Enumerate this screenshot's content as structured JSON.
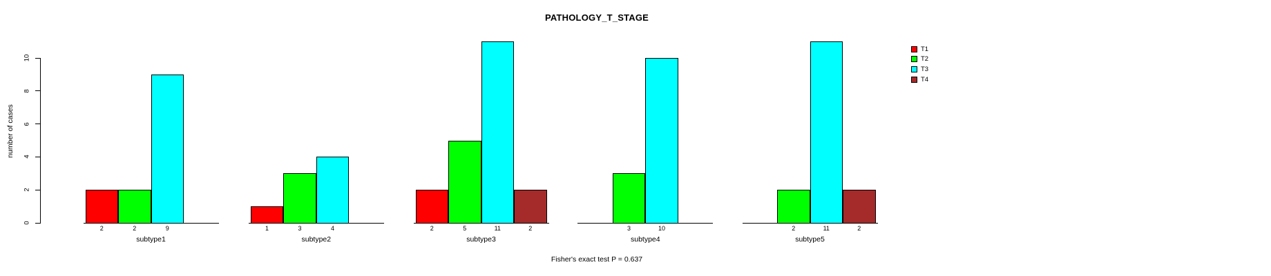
{
  "title": "PATHOLOGY_T_STAGE",
  "footer_stat": "Fisher's exact test P = 0.637",
  "y_axis": {
    "label": "number of cases",
    "ticks": [
      0,
      2,
      4,
      6,
      8,
      10
    ]
  },
  "legend": {
    "items": [
      {
        "label": "T1",
        "color": "#FF0000"
      },
      {
        "label": "T2",
        "color": "#00FF00"
      },
      {
        "label": "T3",
        "color": "#00FFFF"
      },
      {
        "label": "T4",
        "color": "#A52A2A"
      }
    ]
  },
  "chart_data": {
    "type": "bar",
    "title": "PATHOLOGY_T_STAGE",
    "xlabel": "",
    "ylabel": "number of cases",
    "ylim": [
      0,
      10
    ],
    "yticks": [
      0,
      2,
      4,
      6,
      8,
      10
    ],
    "grid": false,
    "legend_position": "right",
    "categories": [
      "subtype1",
      "subtype2",
      "subtype3",
      "subtype4",
      "subtype5"
    ],
    "series": [
      {
        "name": "T1",
        "color": "#FF0000",
        "values": [
          2,
          1,
          2,
          0,
          0
        ]
      },
      {
        "name": "T2",
        "color": "#00FF00",
        "values": [
          2,
          3,
          5,
          3,
          2
        ]
      },
      {
        "name": "T3",
        "color": "#00FFFF",
        "values": [
          9,
          4,
          11,
          10,
          11
        ]
      },
      {
        "name": "T4",
        "color": "#A52A2A",
        "values": [
          0,
          0,
          2,
          0,
          2
        ]
      }
    ],
    "bar_value_labels": "shown under each nonzero bar; zero-count bars are omitted entirely",
    "annotation": "Fisher's exact test P = 0.637"
  }
}
